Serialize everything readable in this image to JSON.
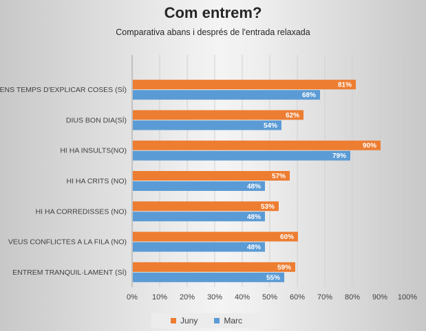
{
  "colors": {
    "series_0": "#ED7D31",
    "series_1": "#5B9BD5",
    "grid": "#d0d0d0",
    "text": "#404040"
  },
  "chart_data": {
    "type": "bar",
    "orientation": "horizontal",
    "title": "Com entrem?",
    "subtitle": "Comparativa abans i després de l'entrada relaxada",
    "categories": [
      "TENS TEMPS D'EXPLICAR COSES (SÍ)",
      "DIUS BON DIA(SÍ)",
      "HI HA INSULTS(NO)",
      "HI HA CRITS (NO)",
      "HI HA CORREDISSES (NO)",
      "VEUS CONFLICTES A LA FILA (NO)",
      "ENTREM TRANQUIL·LAMENT (SÍ)"
    ],
    "series": [
      {
        "name": "Juny",
        "values": [
          81,
          62,
          90,
          57,
          53,
          60,
          59
        ],
        "labels": [
          "81%",
          "62%",
          "90%",
          "57%",
          "53%",
          "60%",
          "59%"
        ]
      },
      {
        "name": "Marc",
        "values": [
          68,
          54,
          79,
          48,
          48,
          48,
          55
        ],
        "labels": [
          "68%",
          "54%",
          "79%",
          "48%",
          "48%",
          "48%",
          "55%"
        ]
      }
    ],
    "xlim": [
      0,
      100
    ],
    "xticks": [
      "0%",
      "10%",
      "20%",
      "30%",
      "40%",
      "50%",
      "60%",
      "70%",
      "80%",
      "90%",
      "100%"
    ],
    "grid": true,
    "legend_position": "bottom",
    "legend": [
      {
        "name": "Juny"
      },
      {
        "name": "Marc"
      }
    ]
  }
}
